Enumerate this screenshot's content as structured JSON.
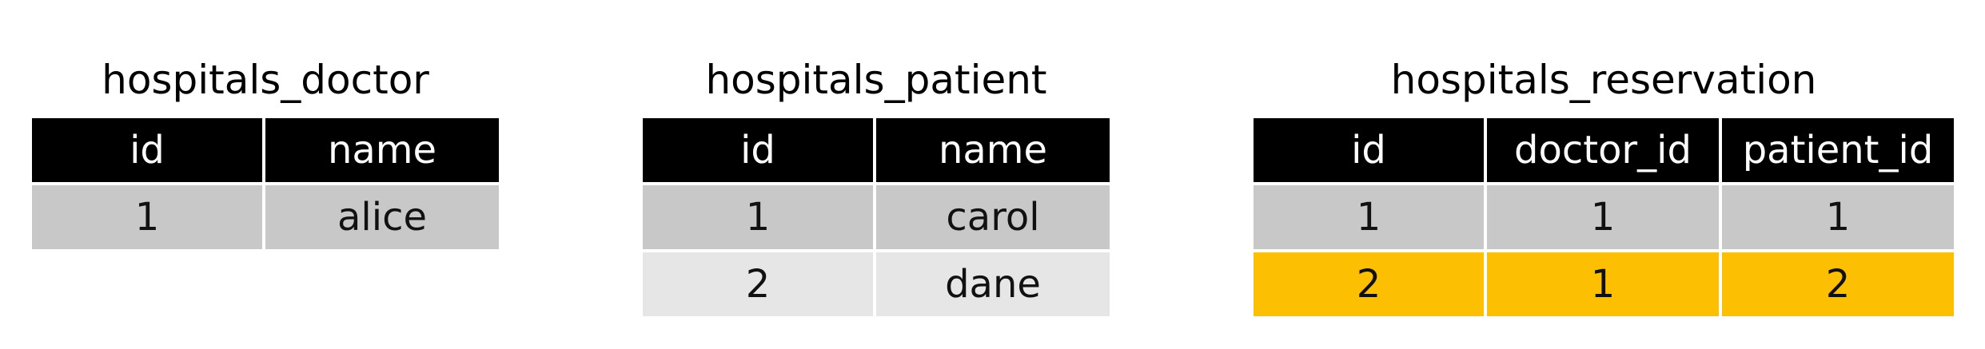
{
  "tables": [
    {
      "title": "hospitals_doctor",
      "columns": [
        "id",
        "name"
      ],
      "rows": [
        {
          "shade": "dark",
          "cells": [
            "1",
            "alice"
          ]
        }
      ]
    },
    {
      "title": "hospitals_patient",
      "columns": [
        "id",
        "name"
      ],
      "rows": [
        {
          "shade": "dark",
          "cells": [
            "1",
            "carol"
          ]
        },
        {
          "shade": "light",
          "cells": [
            "2",
            "dane"
          ]
        }
      ]
    },
    {
      "title": "hospitals_reservation",
      "columns": [
        "id",
        "doctor_id",
        "patient_id"
      ],
      "rows": [
        {
          "shade": "dark",
          "cells": [
            "1",
            "1",
            "1"
          ]
        },
        {
          "shade": "highlight",
          "cells": [
            "2",
            "1",
            "2"
          ]
        }
      ]
    }
  ],
  "colors": {
    "header_bg": "#000000",
    "header_text": "#ffffff",
    "row_dark": "#c8c8c8",
    "row_light": "#e6e6e6",
    "row_highlight": "#fcbf01"
  }
}
